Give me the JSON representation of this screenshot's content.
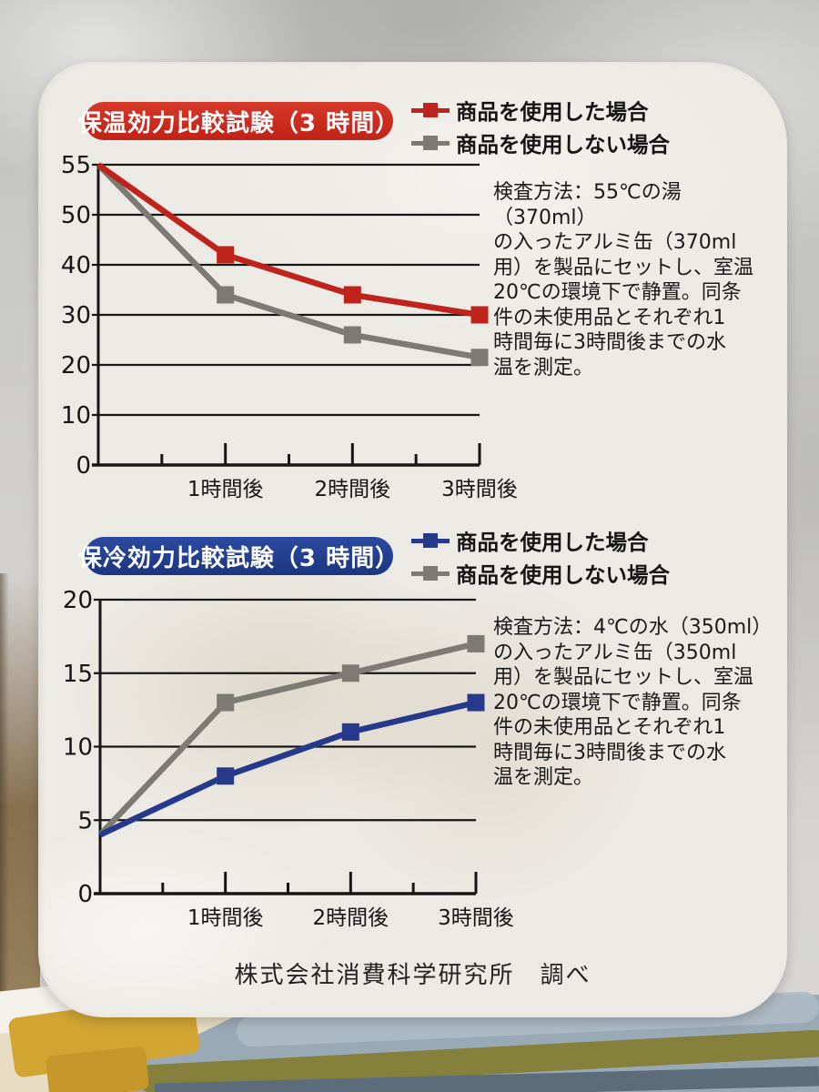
{
  "footer": {
    "credit": "株式会社消費科学研究所　調べ"
  },
  "chart_data": [
    {
      "type": "line",
      "title": "保温効力比較試験（3 時間）",
      "title_bg_color": "#c5281c",
      "x_values": [
        0,
        1,
        2,
        3
      ],
      "x_unit": "時間",
      "categories": [
        "1時間後",
        "2時間後",
        "3時間後"
      ],
      "y_ticks": [
        0,
        10,
        20,
        30,
        40,
        50,
        55
      ],
      "y_axis_note": "温度(℃)、目盛は等間隔(0,10,20,30,40,50,55)",
      "legend_position": "top-right",
      "grid": true,
      "series": [
        {
          "name": "商品を使用した場合",
          "color": "#bf241c",
          "values": [
            55,
            42,
            34,
            30
          ]
        },
        {
          "name": "商品を使用しない場合",
          "color": "#7d7a74",
          "values": [
            55,
            34,
            26,
            21.5
          ]
        }
      ],
      "note": "検査方法：55℃の湯（370ml）\nの入ったアルミ缶（370ml\n用）を製品にセットし、室温\n20℃の環境下で静置。同条\n件の未使用品とそれぞれ1\n時間毎に3時間後までの水\n温を測定。"
    },
    {
      "type": "line",
      "title": "保冷効力比較試験（3 時間）",
      "title_bg_color": "#20377f",
      "x_values": [
        0,
        1,
        2,
        3
      ],
      "x_unit": "時間",
      "categories": [
        "1時間後",
        "2時間後",
        "3時間後"
      ],
      "y_ticks": [
        0,
        5,
        10,
        15,
        20
      ],
      "y_axis_note": "温度(℃)",
      "legend_position": "top-right",
      "grid": true,
      "series": [
        {
          "name": "商品を使用した場合",
          "color": "#27398b",
          "values": [
            4,
            8,
            11,
            13
          ]
        },
        {
          "name": "商品を使用しない場合",
          "color": "#7d7a74",
          "values": [
            4,
            13,
            15,
            17
          ]
        }
      ],
      "note": "検査方法：4℃の水（350ml）\nの入ったアルミ缶（350ml\n用）を製品にセットし、室温\n20℃の環境下で静置。同条\n件の未使用品とそれぞれ1\n時間毎に3時間後までの水\n温を測定。"
    }
  ]
}
